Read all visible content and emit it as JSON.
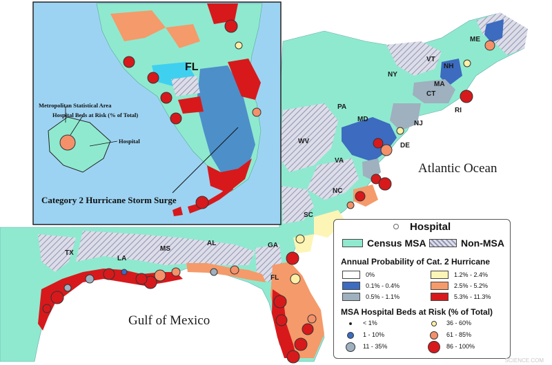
{
  "inset": {
    "state_label": "FL",
    "title": "Category 2 Hurricane Storm Surge",
    "label_msa": "Metropolitan Statistical Area",
    "label_beds": "Hospital Beds at Risk (% of Total)",
    "label_hospital": "Hospital"
  },
  "oceans": {
    "atlantic": "Atlantic Ocean",
    "gulf": "Gulf of Mexico"
  },
  "states": [
    "ME",
    "VT",
    "NH",
    "NY",
    "MA",
    "CT",
    "RI",
    "PA",
    "NJ",
    "MD",
    "DE",
    "WV",
    "VA",
    "NC",
    "SC",
    "GA",
    "AL",
    "MS",
    "LA",
    "TX",
    "FL"
  ],
  "legend": {
    "hospital": "Hospital",
    "census_msa": "Census MSA",
    "non_msa": "Non-MSA",
    "prob_title": "Annual Probability of Cat. 2 Hurricane",
    "prob_classes": [
      {
        "label": "0%",
        "color": "#ffffff"
      },
      {
        "label": "1.2% - 2.4%",
        "color": "#fdf5b6"
      },
      {
        "label": "0.1% - 0.4%",
        "color": "#3c6bbf"
      },
      {
        "label": "2.5% - 5.2%",
        "color": "#f59a6a"
      },
      {
        "label": "0.5% - 1.1%",
        "color": "#9fb0bf"
      },
      {
        "label": "5.3% - 11.3%",
        "color": "#d7191c"
      }
    ],
    "beds_title": "MSA Hospital Beds at Risk (% of Total)",
    "beds_classes": [
      {
        "label": "< 1%",
        "color": "#111111"
      },
      {
        "label": "36 - 60%",
        "color": "#fdf0a6"
      },
      {
        "label": "1 - 10%",
        "color": "#3c6bbf"
      },
      {
        "label": "61 - 85%",
        "color": "#f4916a"
      },
      {
        "label": "11 - 35%",
        "color": "#9fb0bf"
      },
      {
        "label": "86 - 100%",
        "color": "#d7191c"
      }
    ]
  },
  "colors": {
    "msa": "#8fe9cf",
    "water": "#56b6f0",
    "inset_water": "#9dd3f2",
    "surge": "#4d8fc9",
    "red": "#d7191c",
    "orange": "#f59a6a"
  },
  "credit": "SCIENCE.COM"
}
